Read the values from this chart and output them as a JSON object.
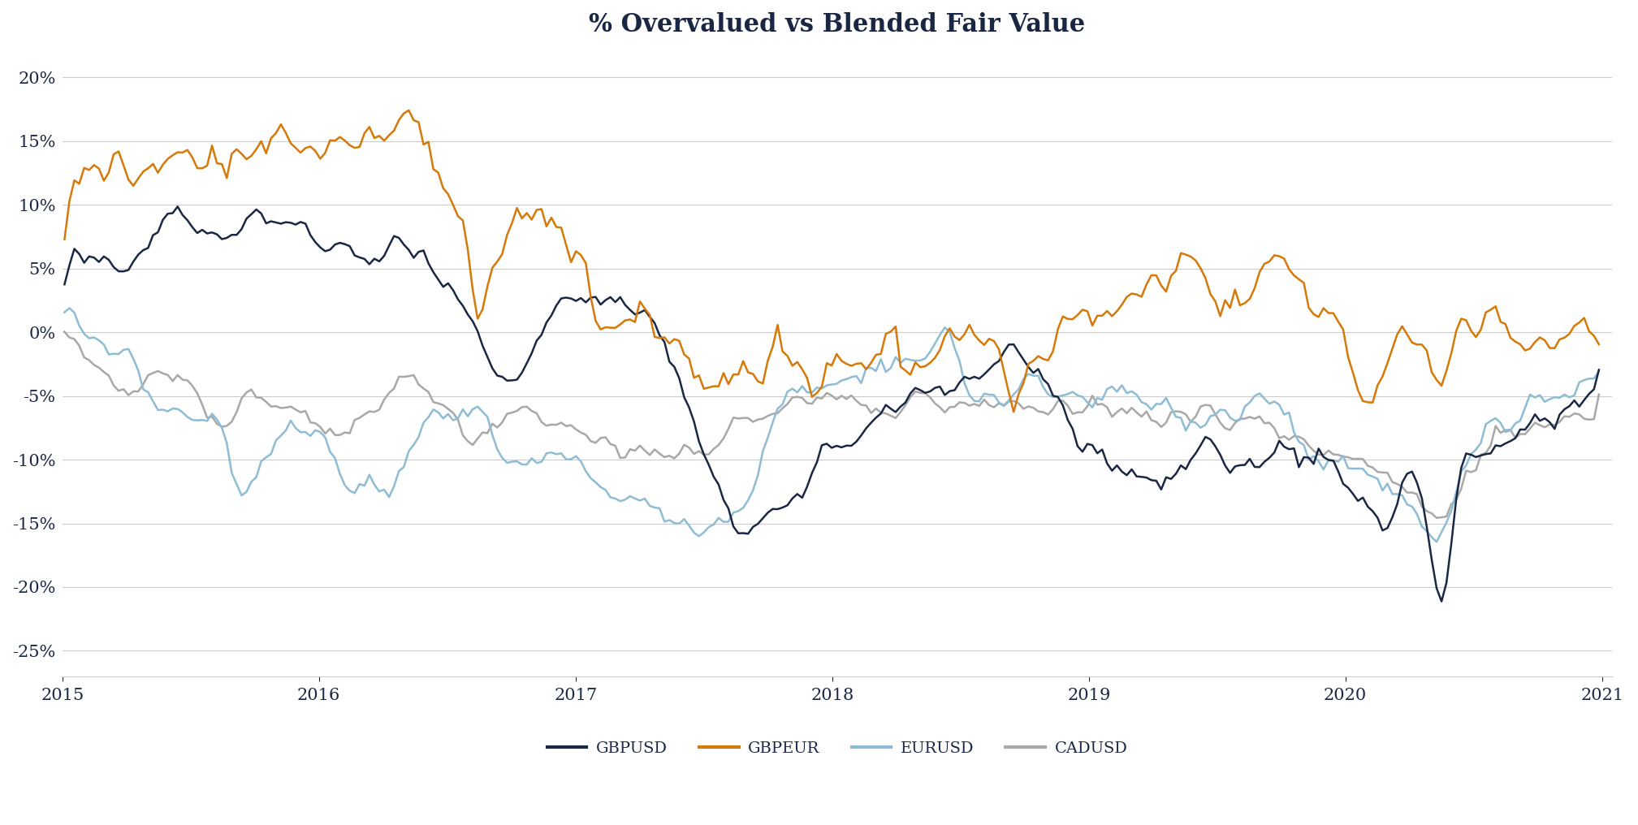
{
  "title": "% Overvalued vs Blended Fair Value",
  "title_color": "#1a2744",
  "title_fontsize": 22,
  "background_color": "#ffffff",
  "ylim": [
    -0.27,
    0.22
  ],
  "yticks": [
    0.2,
    0.15,
    0.1,
    0.05,
    0.0,
    -0.05,
    -0.1,
    -0.15,
    -0.2,
    -0.25
  ],
  "ytick_labels": [
    "20%",
    "15%",
    "10%",
    "5%",
    "0%",
    "-5%",
    "-10%",
    "-15%",
    "-20%",
    "-25%"
  ],
  "series_colors": {
    "GBPUSD": "#1a2744",
    "GBPEUR": "#d4790a",
    "EURUSD": "#8fbcd4",
    "CADUSD": "#a8a8a8"
  },
  "legend_labels": [
    "GBPUSD",
    "GBPEUR",
    "EURUSD",
    "CADUSD"
  ],
  "line_width": 1.8,
  "grid_color": "#cccccc",
  "tick_color": "#1a2744",
  "tick_fontsize": 15
}
